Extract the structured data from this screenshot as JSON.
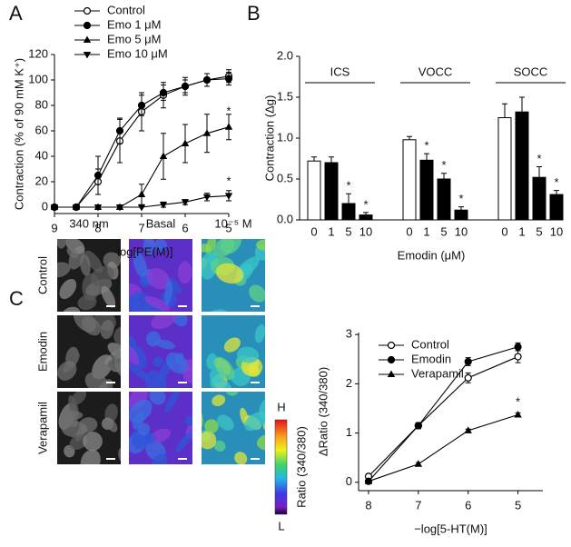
{
  "panel_labels": [
    "A",
    "B",
    "C"
  ],
  "chart_data": [
    {
      "type": "line",
      "x_label": "−log[PE(M)]",
      "y_label": "Contraction (% of 90 mM K⁺)",
      "x": [
        9,
        8.5,
        8,
        7.5,
        7,
        6.5,
        6,
        5.5,
        5
      ],
      "xlim": [
        9,
        5
      ],
      "xticks": [
        9,
        8,
        7,
        6,
        5
      ],
      "ylim": [
        -5,
        120
      ],
      "yticks": [
        0,
        20,
        40,
        60,
        80,
        100,
        120
      ],
      "legend": "top",
      "series": [
        {
          "name": "Control",
          "color": "#000000",
          "marker": "open-circle",
          "values": [
            0,
            0,
            20,
            52,
            75,
            88,
            95,
            100,
            103
          ],
          "errors": [
            0,
            0,
            10,
            17,
            15,
            10,
            7,
            5,
            5
          ]
        },
        {
          "name": "Emo 1 μM",
          "color": "#000000",
          "marker": "circle",
          "values": [
            0,
            0,
            25,
            60,
            80,
            90,
            95,
            100,
            101
          ],
          "errors": [
            0,
            0,
            15,
            10,
            8,
            6,
            5,
            5,
            5
          ]
        },
        {
          "name": "Emo 5 μM",
          "color": "#000000",
          "marker": "triangle-up",
          "values": [
            0,
            0,
            0,
            0,
            10,
            40,
            50,
            58,
            63
          ],
          "errors": [
            0,
            0,
            0,
            0,
            8,
            18,
            15,
            15,
            10
          ]
        },
        {
          "name": "Emo 10 μM",
          "color": "#000000",
          "marker": "triangle-down",
          "values": [
            0,
            0,
            0,
            0,
            0,
            2,
            4,
            8,
            9
          ],
          "errors": [
            0,
            0,
            0,
            0,
            0,
            2,
            2,
            3,
            4
          ]
        }
      ],
      "annotations": [
        {
          "text": "*",
          "x": 5,
          "y": 75
        },
        {
          "text": "*",
          "x": 5,
          "y": 20
        }
      ]
    },
    {
      "type": "bar",
      "x_label": "Emodin (μM)",
      "y_label": "Contraction (Δg)",
      "ylim": [
        0,
        2
      ],
      "yticks": [
        {
          "value": 0,
          "label": "0.0"
        },
        {
          "value": 0.5,
          "label": "0.5"
        },
        {
          "value": 1,
          "label": "1.0"
        },
        {
          "value": 1.5,
          "label": "1.5"
        },
        {
          "value": 2,
          "label": "2.0"
        }
      ],
      "colors": [
        "#ffffff",
        "#000000",
        "#000000",
        "#000000"
      ],
      "groups": [
        {
          "name": "ICS",
          "categories": [
            "0",
            "1",
            "5",
            "10"
          ],
          "values": [
            0.72,
            0.7,
            0.2,
            0.06
          ],
          "errors": [
            0.05,
            0.07,
            0.12,
            0.03
          ],
          "significance": [
            null,
            null,
            "*",
            "*"
          ]
        },
        {
          "name": "VOCC",
          "categories": [
            "0",
            "1",
            "5",
            "10"
          ],
          "values": [
            0.98,
            0.73,
            0.5,
            0.12
          ],
          "errors": [
            0.04,
            0.08,
            0.07,
            0.04
          ],
          "significance": [
            null,
            "*",
            "*",
            "*"
          ]
        },
        {
          "name": "SOCC",
          "categories": [
            "0",
            "1",
            "5",
            "10"
          ],
          "values": [
            1.25,
            1.32,
            0.52,
            0.31
          ],
          "errors": [
            0.17,
            0.18,
            0.13,
            0.05
          ],
          "significance": [
            null,
            null,
            "*",
            "*"
          ]
        }
      ]
    },
    {
      "type": "line",
      "x_label": "−log[5-HT(M)]",
      "y_label": "ΔRatio (340/380)",
      "x": [
        8,
        7,
        6,
        5
      ],
      "xlim": [
        8.2,
        4.5
      ],
      "xticks": [
        8,
        7,
        6,
        5
      ],
      "ylim": [
        -0.17,
        3.04
      ],
      "yticks": [
        0,
        1,
        2,
        3
      ],
      "legend": "upper left",
      "series": [
        {
          "name": "Control",
          "color": "#000000",
          "marker": "open-circle",
          "values": [
            0.12,
            1.15,
            2.12,
            2.55
          ],
          "errors": [
            0.05,
            0.06,
            0.1,
            0.12
          ]
        },
        {
          "name": "Emodin",
          "color": "#000000",
          "marker": "circle",
          "values": [
            0.02,
            1.15,
            2.45,
            2.75
          ],
          "errors": [
            0.03,
            0.06,
            0.08,
            0.08
          ]
        },
        {
          "name": "Verapamil",
          "color": "#000000",
          "marker": "triangle-up",
          "values": [
            0.02,
            0.37,
            1.05,
            1.37
          ],
          "errors": [
            0.02,
            0.03,
            0.03,
            0.04
          ]
        }
      ],
      "annotations": [
        {
          "text": "*",
          "x": 5,
          "y": 1.62
        }
      ]
    }
  ],
  "images": {
    "columns": [
      "340 nm",
      "Basal",
      "10⁻⁵ M"
    ],
    "rows": [
      "Control",
      "Emodin",
      "Verapamil"
    ],
    "colorbar": {
      "label": "Ratio (340/380)",
      "high": "H",
      "low": "L"
    }
  }
}
